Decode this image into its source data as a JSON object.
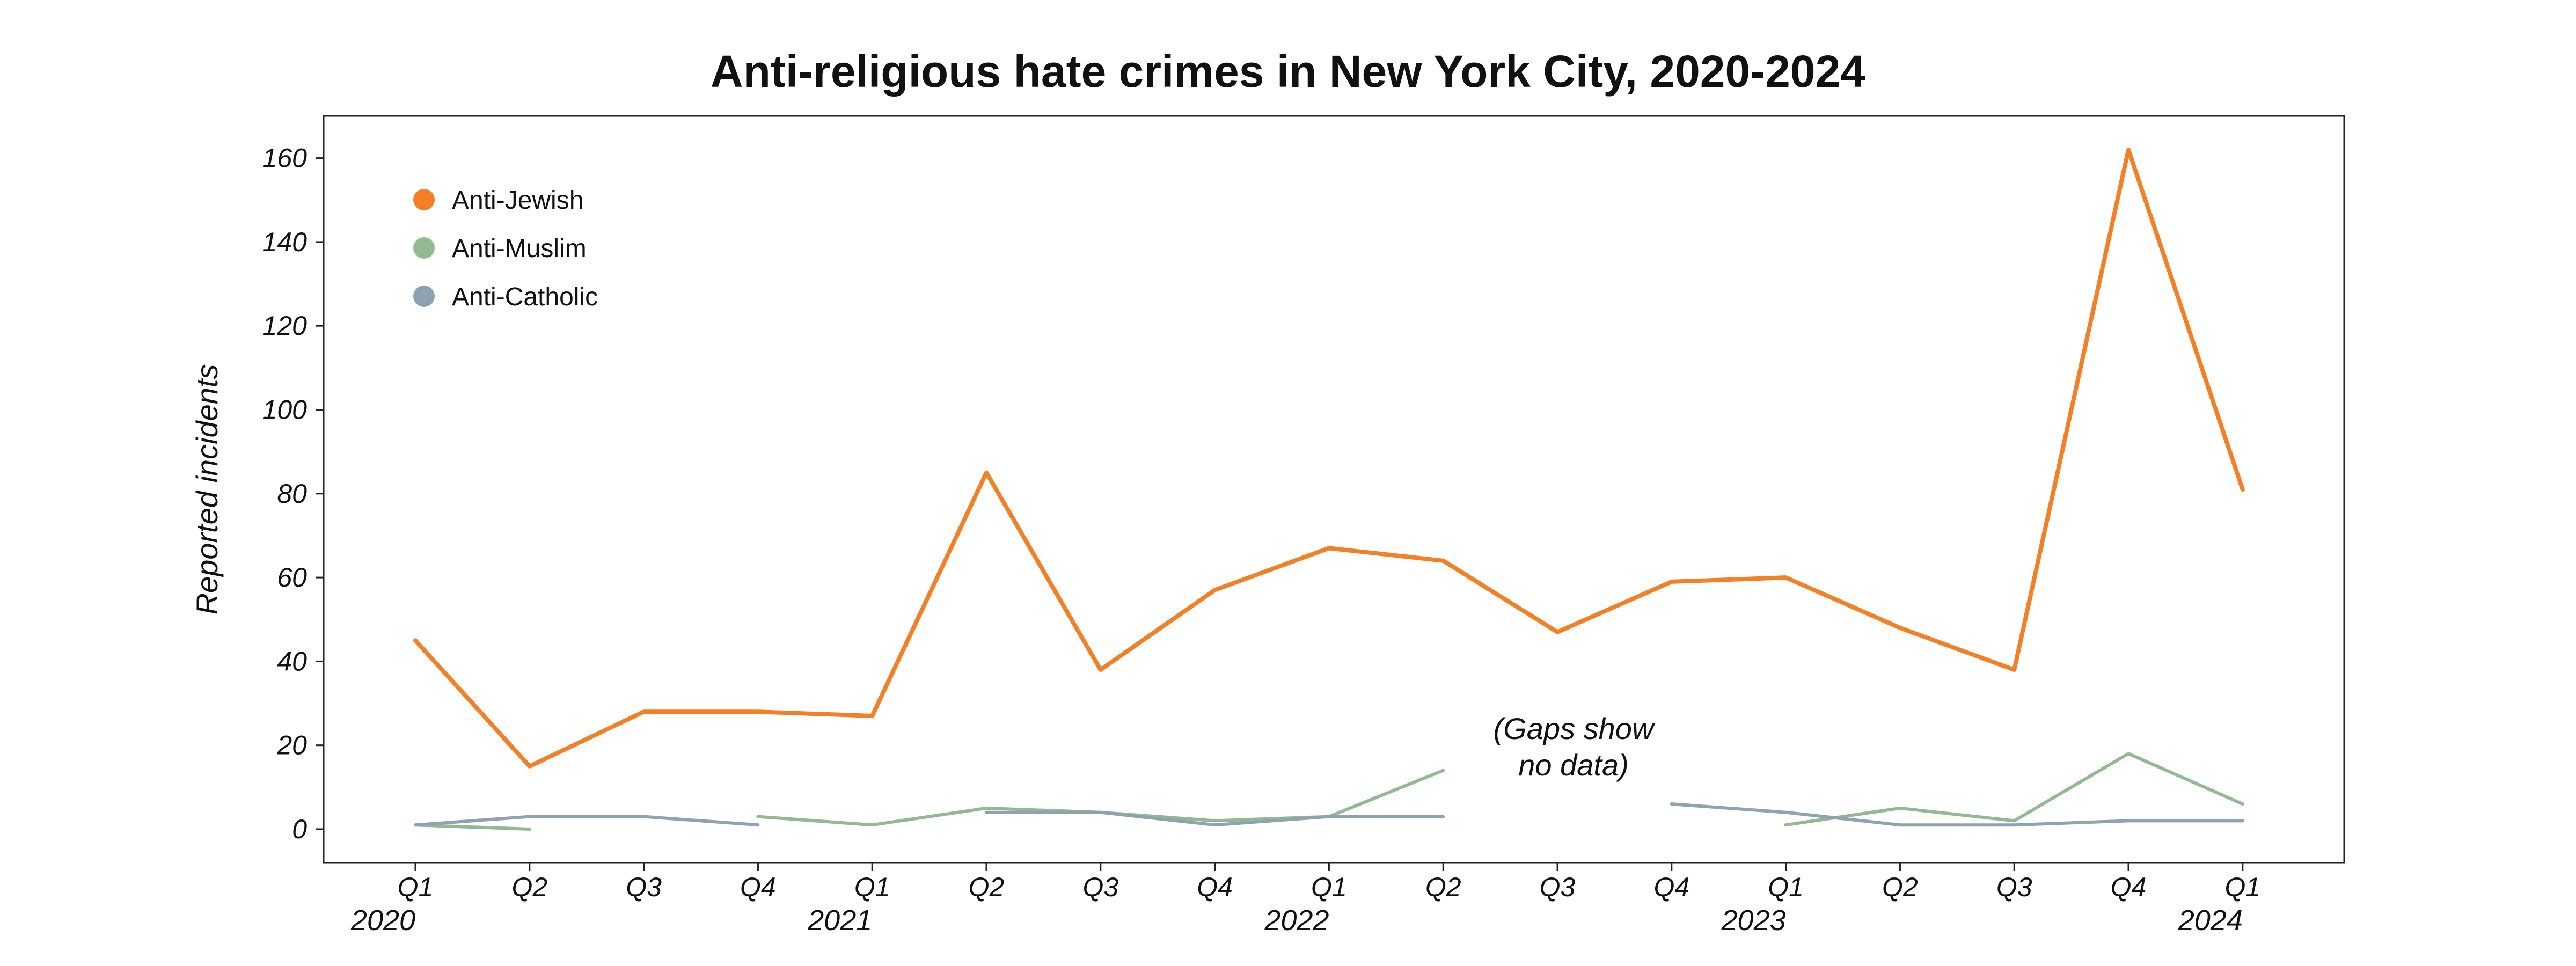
{
  "chart_data": {
    "type": "line",
    "title": "Anti-religious hate crimes in New York City, 2020-2024",
    "xlabel": "",
    "ylabel": "Reported incidents",
    "ylim": [
      -8,
      170
    ],
    "yticks": [
      "0",
      "20",
      "40",
      "60",
      "80",
      "100",
      "120",
      "140",
      "160"
    ],
    "categories": [
      "Q1",
      "Q2",
      "Q3",
      "Q4",
      "Q1",
      "Q2",
      "Q3",
      "Q4",
      "Q1",
      "Q2",
      "Q3",
      "Q4",
      "Q1",
      "Q2",
      "Q3",
      "Q4",
      "Q1"
    ],
    "years": [
      {
        "label": "2020",
        "index": 0
      },
      {
        "label": "2021",
        "index": 4
      },
      {
        "label": "2022",
        "index": 8
      },
      {
        "label": "2023",
        "index": 12
      },
      {
        "label": "2024",
        "index": 16
      }
    ],
    "legend_position": "top-left",
    "grid": false,
    "annotation": {
      "lines": [
        "(Gaps show",
        "no data)"
      ],
      "x_index": 10,
      "y": 17
    },
    "series": [
      {
        "name": "Anti-Jewish",
        "color": "#f47f24",
        "values": [
          45,
          15,
          28,
          28,
          27,
          85,
          38,
          57,
          67,
          64,
          47,
          59,
          60,
          48,
          38,
          162,
          81
        ]
      },
      {
        "name": "Anti-Muslim",
        "color": "#93b894",
        "values": [
          1,
          0,
          null,
          3,
          1,
          5,
          4,
          2,
          3,
          14,
          null,
          null,
          1,
          5,
          2,
          18,
          6
        ]
      },
      {
        "name": "Anti-Catholic",
        "color": "#8fa2b0",
        "values": [
          1,
          3,
          3,
          1,
          null,
          4,
          4,
          1,
          3,
          3,
          null,
          6,
          4,
          1,
          1,
          2,
          2
        ]
      }
    ]
  }
}
